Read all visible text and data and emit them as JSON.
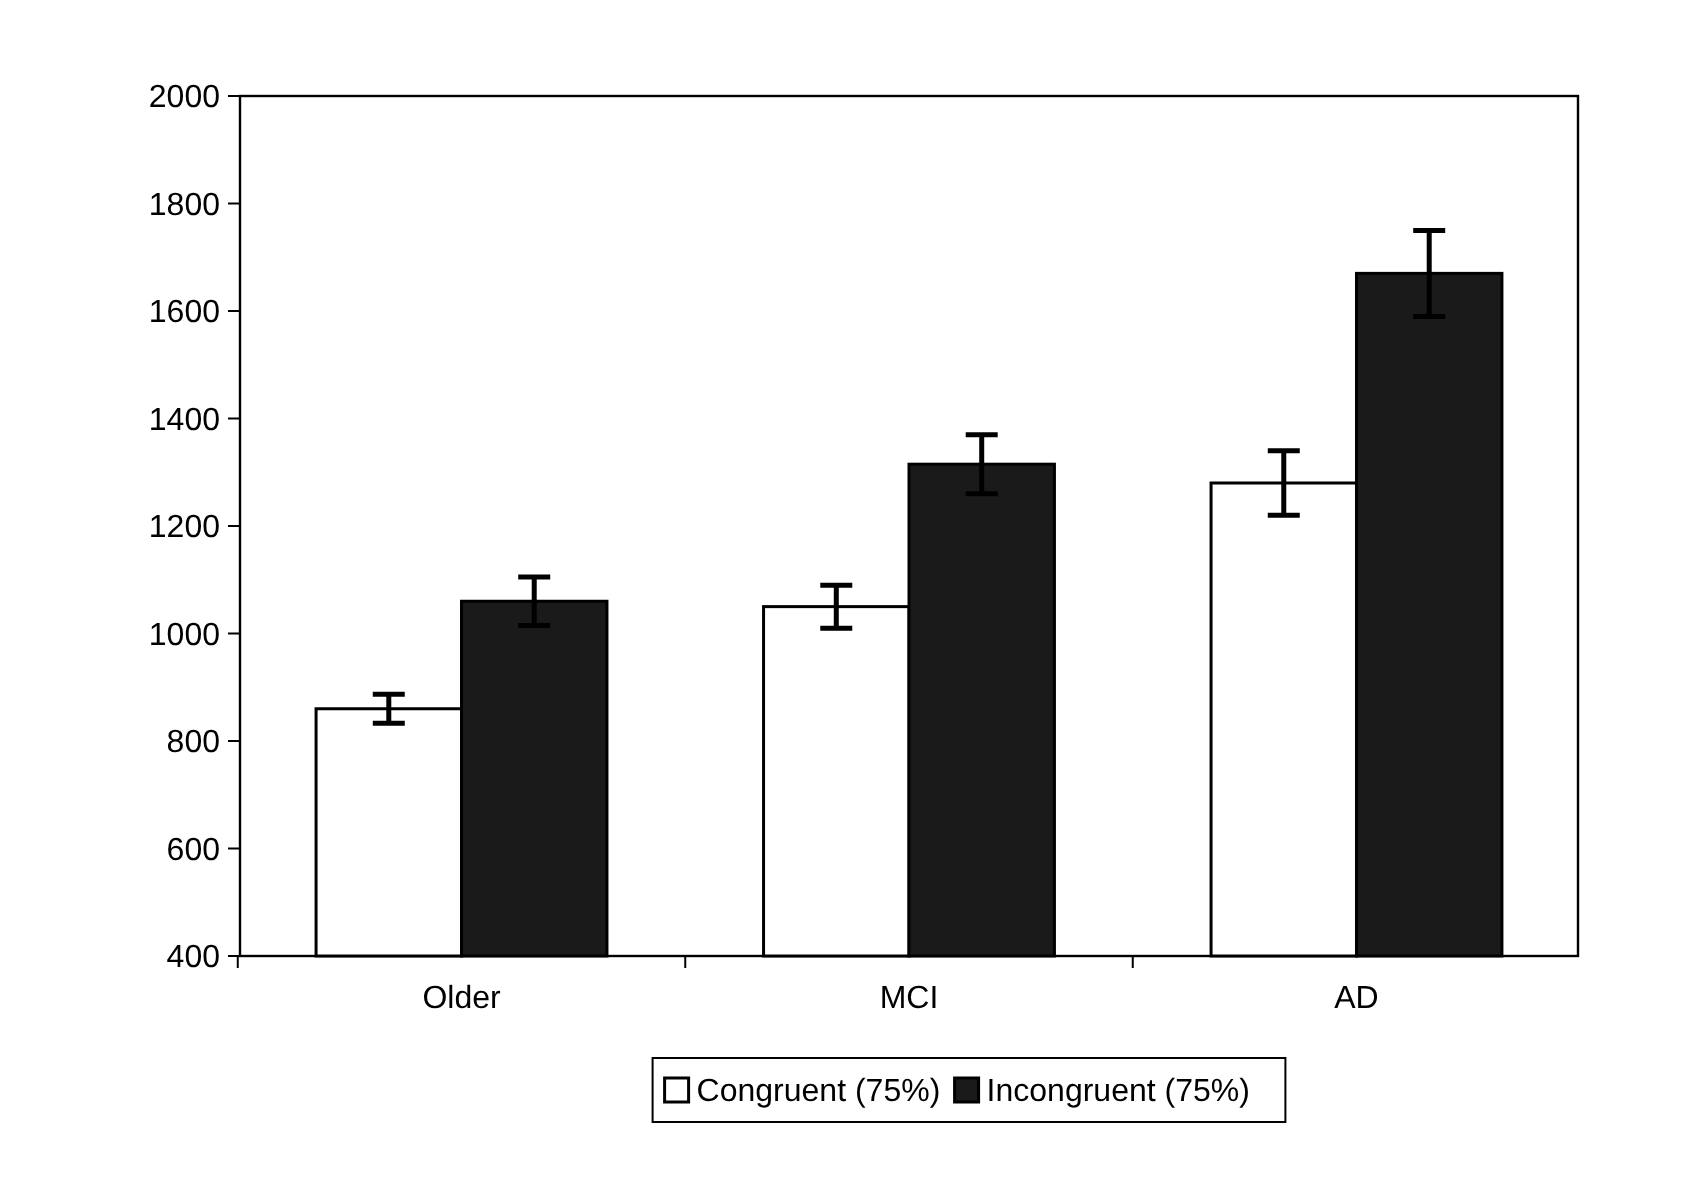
{
  "chart_data": {
    "type": "bar",
    "categories": [
      "Older",
      "MCI",
      "AD"
    ],
    "series": [
      {
        "name": "Congruent (75%)",
        "color": "#ffffff",
        "values": [
          860,
          1050,
          1280
        ],
        "errors": [
          27,
          40,
          60
        ]
      },
      {
        "name": "Incongruent (75%)",
        "color": "#1a1a1a",
        "values": [
          1060,
          1315,
          1670
        ],
        "errors": [
          45,
          55,
          80
        ]
      }
    ],
    "ylim": [
      400,
      2000
    ],
    "yticks": [
      400,
      600,
      800,
      1000,
      1200,
      1400,
      1600,
      1800,
      2000
    ],
    "grid": false,
    "legend": "bottom"
  }
}
